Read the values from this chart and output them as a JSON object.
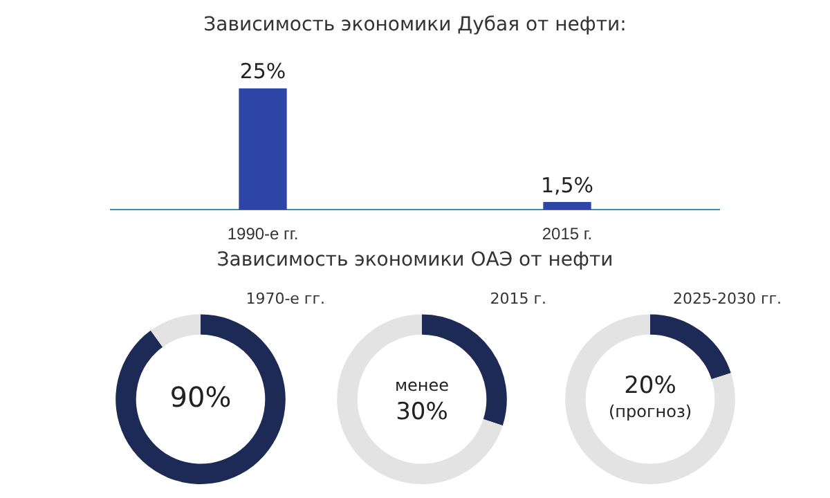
{
  "chart_data": [
    {
      "type": "bar",
      "title": "Зависимость экономики Дубая от нефти:",
      "categories": [
        "1990-е гг.",
        "2015 г."
      ],
      "values": [
        25,
        1.5
      ],
      "color": "#2d45a6",
      "value_labels": [
        "25%",
        "1,5%"
      ]
    },
    {
      "type": "other",
      "title": "Зависимость экономики ОАЭ от нефти"
    },
    {
      "type": "donut",
      "title": "1970-е гг.",
      "categories": [
        null,
        null
      ],
      "values": [
        90,
        10
      ],
      "colors": [
        "#1c2a55",
        "#e3e3e3"
      ],
      "value_labels": [
        "90%",
        null
      ]
    },
    {
      "type": "donut",
      "title": "2015 г.",
      "categories": [
        null,
        null
      ],
      "values": [
        30,
        70
      ],
      "colors": [
        "#1c2a55",
        "#e3e3e3"
      ],
      "annotations": [
        "менее 30%"
      ]
    },
    {
      "type": "donut",
      "title": "2025-2030 гг.",
      "categories": [
        null,
        null
      ],
      "values": [
        20,
        80
      ],
      "colors": [
        "#1c2a55",
        "#e3e3e3"
      ],
      "value_labels": [
        "20%",
        null
      ],
      "annotations": [
        "(прогноз)"
      ]
    }
  ]
}
